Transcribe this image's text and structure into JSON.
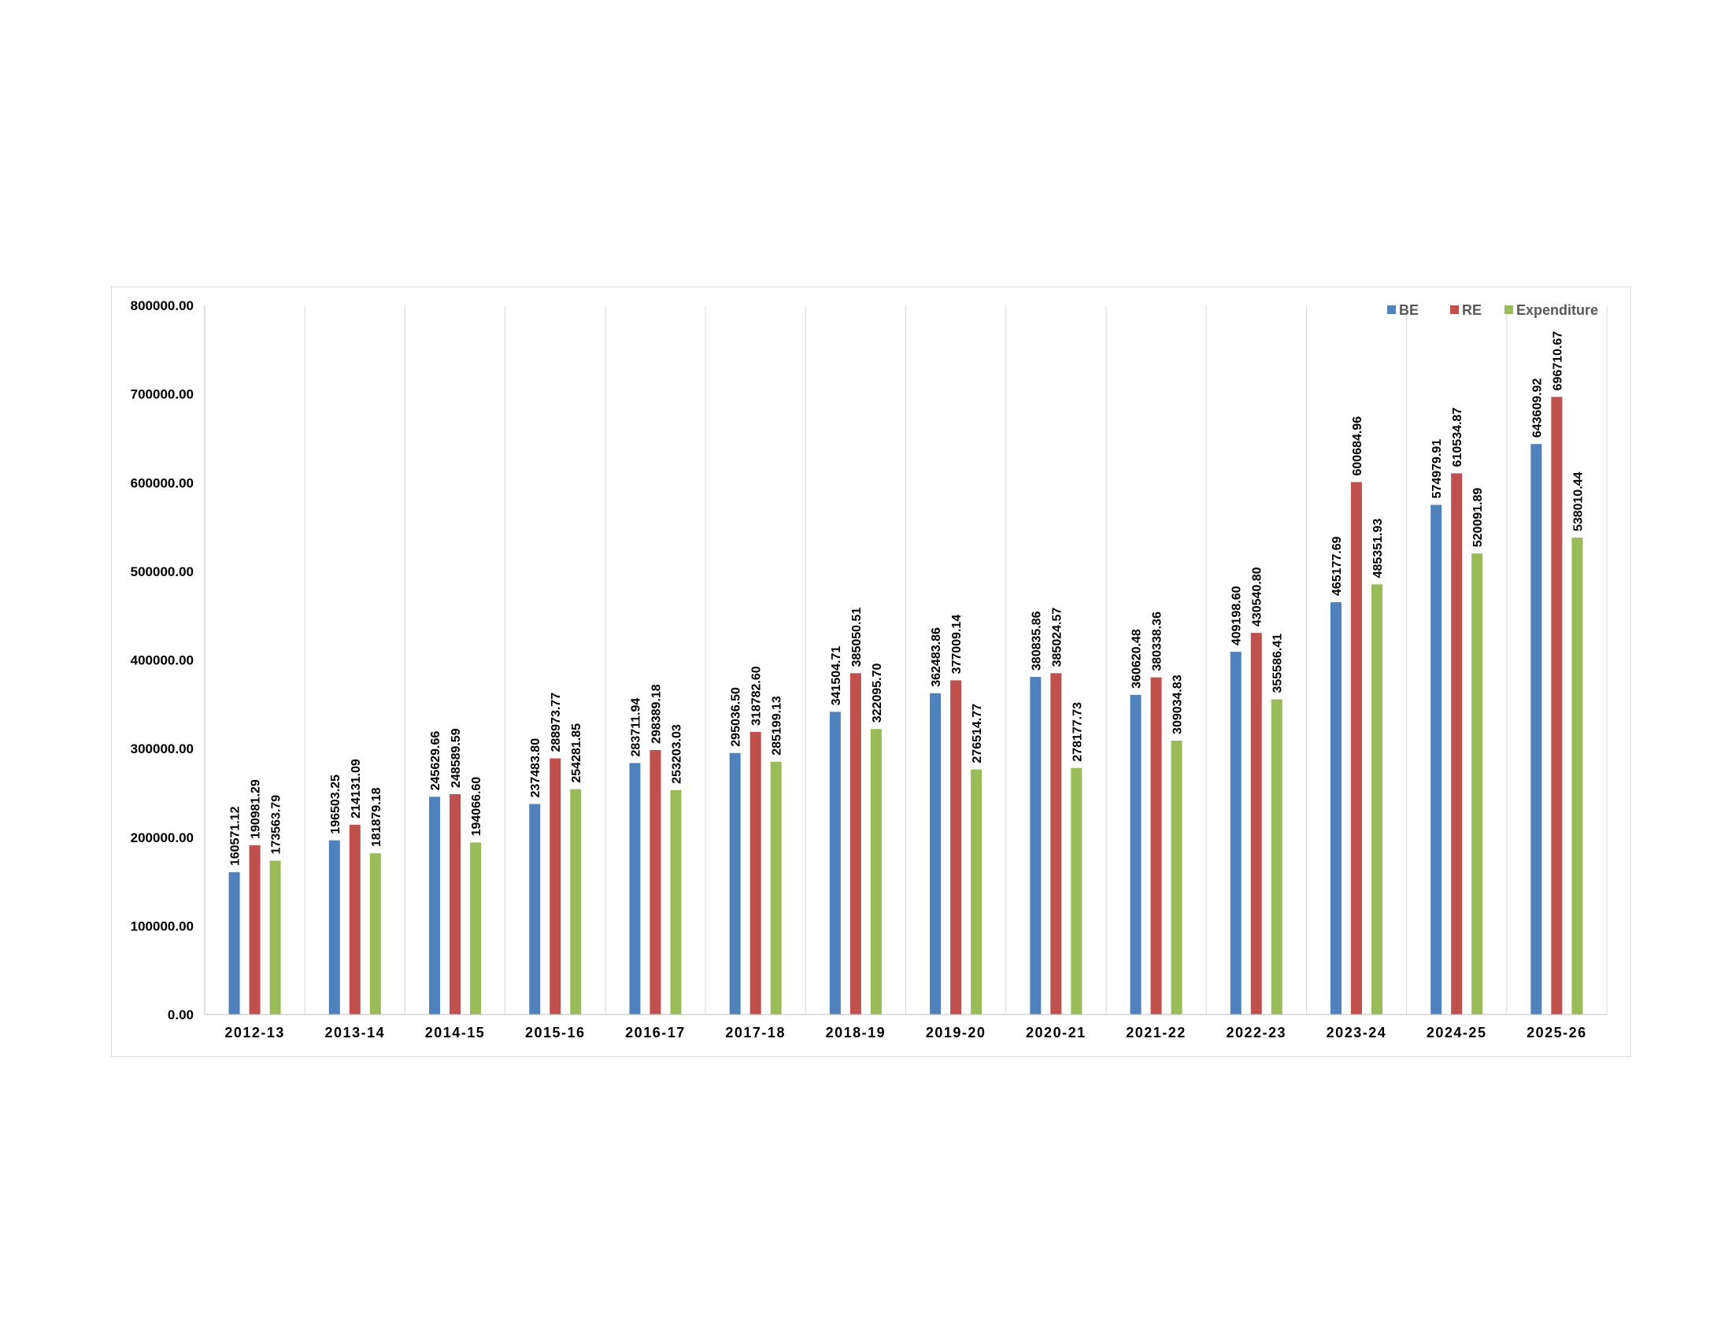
{
  "chart_data": {
    "type": "bar",
    "title": "",
    "xlabel": "",
    "ylabel": "",
    "ylim": [
      0,
      800000
    ],
    "yticks": [
      "0.00",
      "100000.00",
      "200000.00",
      "300000.00",
      "400000.00",
      "500000.00",
      "600000.00",
      "700000.00",
      "800000.00"
    ],
    "grid": "vertical category separators",
    "legend_position": "top-right",
    "categories": [
      "2012-13",
      "2013-14",
      "2014-15",
      "2015-16",
      "2016-17",
      "2017-18",
      "2018-19",
      "2019-20",
      "2020-21",
      "2021-22",
      "2022-23",
      "2023-24",
      "2024-25",
      "2025-26"
    ],
    "series": [
      {
        "name": "BE",
        "color": "#4f81bd",
        "values": [
          160571.12,
          196503.25,
          245629.66,
          237483.8,
          283711.94,
          295036.5,
          341504.71,
          362483.86,
          380835.86,
          360620.48,
          409198.6,
          465177.69,
          574979.91,
          643609.92
        ],
        "labels": [
          "160571.12",
          "196503.25",
          "245629.66",
          "237483.80",
          "283711.94",
          "295036.50",
          "341504.71",
          "362483.86",
          "380835.86",
          "360620.48",
          "409198.60",
          "465177.69",
          "574979.91",
          "643609.92"
        ]
      },
      {
        "name": "RE",
        "color": "#c0504d",
        "values": [
          190981.29,
          214131.09,
          248589.59,
          288973.77,
          298389.18,
          318782.6,
          385050.51,
          377009.14,
          385024.57,
          380338.36,
          430540.8,
          600684.96,
          610534.87,
          696710.67
        ],
        "labels": [
          "190981.29",
          "214131.09",
          "248589.59",
          "288973.77",
          "298389.18",
          "318782.60",
          "385050.51",
          "377009.14",
          "385024.57",
          "380338.36",
          "430540.80",
          "600684.96",
          "610534.87",
          "696710.67"
        ]
      },
      {
        "name": "Expenditure",
        "color": "#9bbb59",
        "values": [
          173563.79,
          181879.18,
          194066.6,
          254281.85,
          253203.03,
          285199.13,
          322095.7,
          276514.77,
          278177.73,
          309034.83,
          355586.41,
          485351.93,
          520091.89,
          538010.44
        ],
        "labels": [
          "173563.79",
          "181879.18",
          "194066.60",
          "254281.85",
          "253203.03",
          "285199.13",
          "322095.70",
          "276514.77",
          "278177.73",
          "309034.83",
          "355586.41",
          "485351.93",
          "520091.89",
          "538010.44"
        ]
      }
    ]
  }
}
